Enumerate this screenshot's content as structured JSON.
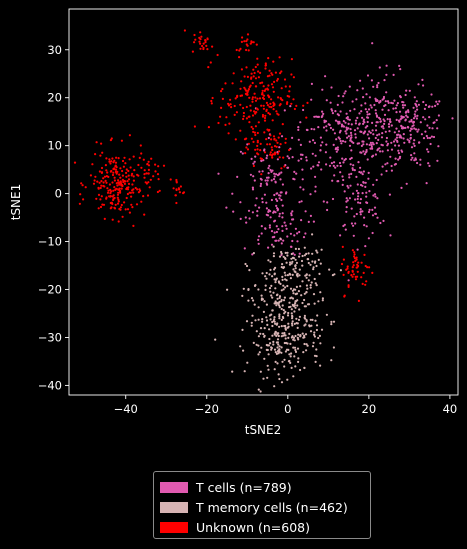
{
  "chart_data": {
    "type": "scatter",
    "xlabel": "tSNE2",
    "ylabel": "tSNE1",
    "xlim": [
      -54,
      42
    ],
    "ylim": [
      -42,
      38.5
    ],
    "xticks": [
      -40,
      -20,
      0,
      20,
      40
    ],
    "yticks": [
      -40,
      -30,
      -20,
      -10,
      0,
      10,
      20,
      30
    ],
    "xtick_labels": [
      "−40",
      "−20",
      "0",
      "20",
      "40"
    ],
    "ytick_labels": [
      "−40",
      "−30",
      "−20",
      "−10",
      "0",
      "10",
      "20",
      "30"
    ],
    "grid": false,
    "legend_position": "below",
    "series": [
      {
        "name": "T cells (n=789)",
        "color": "#e05ab0",
        "count": 789,
        "clusters": [
          {
            "cx": 13,
            "cy": 12,
            "sx": 6,
            "sy": 5,
            "n": 200
          },
          {
            "cx": 23,
            "cy": 15,
            "sx": 5,
            "sy": 5,
            "n": 170
          },
          {
            "cx": 31,
            "cy": 13,
            "sx": 4,
            "sy": 4,
            "n": 140
          },
          {
            "cx": 17,
            "cy": -2,
            "sx": 3.5,
            "sy": 4,
            "n": 90
          },
          {
            "cx": -4,
            "cy": 3,
            "sx": 4.5,
            "sy": 5,
            "n": 110
          },
          {
            "cx": -3,
            "cy": -7,
            "sx": 4,
            "sy": 3,
            "n": 79
          }
        ]
      },
      {
        "name": "T memory cells (n=462)",
        "color": "#d7b4b4",
        "count": 462,
        "clusters": [
          {
            "cx": 0,
            "cy": -22,
            "sx": 5,
            "sy": 5,
            "n": 220
          },
          {
            "cx": -1,
            "cy": -31,
            "sx": 4.5,
            "sy": 3.5,
            "n": 180
          },
          {
            "cx": 2,
            "cy": -15,
            "sx": 3.5,
            "sy": 2.5,
            "n": 62
          }
        ]
      },
      {
        "name": "Unknown (n=608)",
        "color": "#ff0000",
        "count": 608,
        "clusters": [
          {
            "cx": -42,
            "cy": 2,
            "sx": 3.5,
            "sy": 3.5,
            "n": 220
          },
          {
            "cx": -8,
            "cy": 20,
            "sx": 4.5,
            "sy": 4,
            "n": 200
          },
          {
            "cx": -5,
            "cy": 10,
            "sx": 3,
            "sy": 2.5,
            "n": 60
          },
          {
            "cx": 17,
            "cy": -16,
            "sx": 1.8,
            "sy": 2.5,
            "n": 50
          },
          {
            "cx": -21,
            "cy": 31.5,
            "sx": 1.3,
            "sy": 1.2,
            "n": 25
          },
          {
            "cx": -10,
            "cy": 31.5,
            "sx": 1.5,
            "sy": 1,
            "n": 18
          },
          {
            "cx": -27,
            "cy": 0.5,
            "sx": 0.8,
            "sy": 1.5,
            "n": 15
          },
          {
            "cx": -33,
            "cy": 5,
            "sx": 1.5,
            "sy": 2.5,
            "n": 20
          }
        ]
      }
    ]
  }
}
